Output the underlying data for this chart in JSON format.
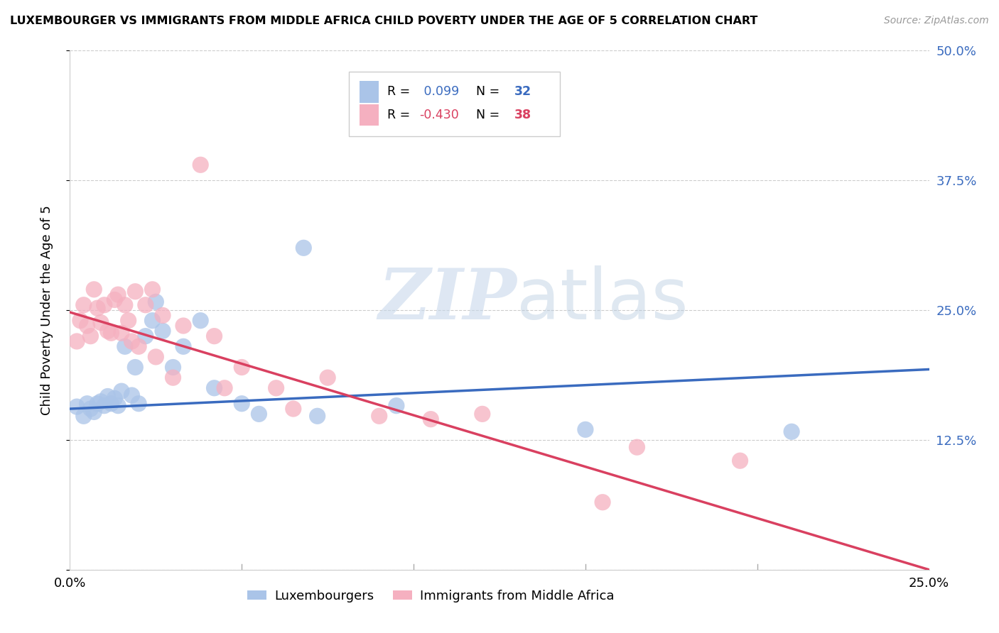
{
  "title": "LUXEMBOURGER VS IMMIGRANTS FROM MIDDLE AFRICA CHILD POVERTY UNDER THE AGE OF 5 CORRELATION CHART",
  "source": "Source: ZipAtlas.com",
  "ylabel": "Child Poverty Under the Age of 5",
  "blue_color": "#aac4e8",
  "pink_color": "#f5b0c0",
  "blue_line_color": "#3a6bbf",
  "pink_line_color": "#d94060",
  "R_blue": 0.099,
  "N_blue": 32,
  "R_pink": -0.43,
  "N_pink": 38,
  "xlim": [
    0.0,
    0.25
  ],
  "ylim": [
    0.0,
    0.5
  ],
  "yticks": [
    0.0,
    0.125,
    0.25,
    0.375,
    0.5
  ],
  "xticks": [
    0.0,
    0.05,
    0.1,
    0.15,
    0.2,
    0.25
  ],
  "xtick_labels": [
    "0.0%",
    "",
    "",
    "",
    "",
    "25.0%"
  ],
  "ytick_labels_right": [
    "",
    "12.5%",
    "25.0%",
    "37.5%",
    "50.0%"
  ],
  "watermark_zip": "ZIP",
  "watermark_atlas": "atlas",
  "legend_label_blue": "Luxembourgers",
  "legend_label_pink": "Immigrants from Middle Africa",
  "background_color": "#ffffff",
  "grid_color": "#cccccc",
  "blue_scatter_x": [
    0.002,
    0.004,
    0.005,
    0.006,
    0.007,
    0.008,
    0.009,
    0.01,
    0.011,
    0.012,
    0.013,
    0.014,
    0.015,
    0.016,
    0.018,
    0.019,
    0.02,
    0.022,
    0.024,
    0.025,
    0.027,
    0.03,
    0.033,
    0.038,
    0.042,
    0.05,
    0.055,
    0.068,
    0.072,
    0.095,
    0.15,
    0.21
  ],
  "blue_scatter_y": [
    0.157,
    0.148,
    0.16,
    0.155,
    0.152,
    0.16,
    0.162,
    0.158,
    0.167,
    0.16,
    0.165,
    0.158,
    0.172,
    0.215,
    0.168,
    0.195,
    0.16,
    0.225,
    0.24,
    0.258,
    0.23,
    0.195,
    0.215,
    0.24,
    0.175,
    0.16,
    0.15,
    0.31,
    0.148,
    0.158,
    0.135,
    0.133
  ],
  "pink_scatter_x": [
    0.002,
    0.003,
    0.004,
    0.005,
    0.006,
    0.007,
    0.008,
    0.009,
    0.01,
    0.011,
    0.012,
    0.013,
    0.014,
    0.015,
    0.016,
    0.017,
    0.018,
    0.019,
    0.02,
    0.022,
    0.024,
    0.025,
    0.027,
    0.03,
    0.033,
    0.038,
    0.042,
    0.045,
    0.05,
    0.06,
    0.065,
    0.075,
    0.09,
    0.105,
    0.12,
    0.155,
    0.165,
    0.195
  ],
  "pink_scatter_y": [
    0.22,
    0.24,
    0.255,
    0.235,
    0.225,
    0.27,
    0.252,
    0.238,
    0.255,
    0.23,
    0.228,
    0.26,
    0.265,
    0.228,
    0.255,
    0.24,
    0.22,
    0.268,
    0.215,
    0.255,
    0.27,
    0.205,
    0.245,
    0.185,
    0.235,
    0.39,
    0.225,
    0.175,
    0.195,
    0.175,
    0.155,
    0.185,
    0.148,
    0.145,
    0.15,
    0.065,
    0.118,
    0.105
  ],
  "blue_line_x0": 0.0,
  "blue_line_y0": 0.155,
  "blue_line_x1": 0.25,
  "blue_line_y1": 0.193,
  "pink_line_x0": 0.0,
  "pink_line_y0": 0.248,
  "pink_line_x1": 0.25,
  "pink_line_y1": 0.0
}
